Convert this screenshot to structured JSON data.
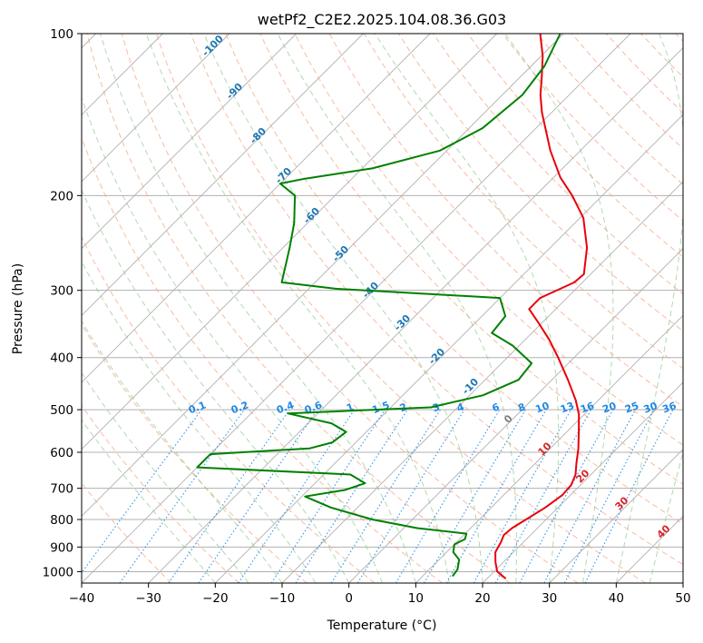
{
  "chart_data": {
    "type": "line",
    "title": "wetPf2_C2E2.2025.104.08.36.G03",
    "xlabel": "Temperature (°C)",
    "ylabel": "Pressure (hPa)",
    "xlim": [
      -40,
      50
    ],
    "ylim": [
      1050,
      100
    ],
    "y_scale": "log",
    "skew": true,
    "grid": true,
    "x_ticks": [
      "-40",
      "-30",
      "-20",
      "-10",
      "0",
      "10",
      "20",
      "30",
      "40",
      "50"
    ],
    "y_ticks": [
      "100",
      "200",
      "300",
      "400",
      "500",
      "600",
      "700",
      "800",
      "900",
      "1000"
    ],
    "colors": {
      "temperature": "#e8000b",
      "dewpoint": "#008000",
      "isotherm_grid": "#b0b0b0",
      "dry_adiabat": "#f4a582",
      "moist_adiabat": "#7fbf7b",
      "mixing_ratio": "#1e88e5",
      "label_blue": "#1f77b4",
      "label_red": "#d62728"
    },
    "series": [
      {
        "name": "",
        "role": "temperature",
        "points": [
          {
            "p": 1030,
            "t": 22.8
          },
          {
            "p": 1000,
            "t": 20.5
          },
          {
            "p": 960,
            "t": 18.8
          },
          {
            "p": 920,
            "t": 17.3
          },
          {
            "p": 880,
            "t": 16.6
          },
          {
            "p": 855,
            "t": 16.0
          },
          {
            "p": 830,
            "t": 16.2
          },
          {
            "p": 800,
            "t": 17.0
          },
          {
            "p": 760,
            "t": 18.1
          },
          {
            "p": 720,
            "t": 18.8
          },
          {
            "p": 690,
            "t": 18.6
          },
          {
            "p": 660,
            "t": 17.7
          },
          {
            "p": 630,
            "t": 16.2
          },
          {
            "p": 590,
            "t": 14.2
          },
          {
            "p": 545,
            "t": 11.5
          },
          {
            "p": 510,
            "t": 9.2
          },
          {
            "p": 480,
            "t": 6.6
          },
          {
            "p": 440,
            "t": 2.4
          },
          {
            "p": 400,
            "t": -2.4
          },
          {
            "p": 370,
            "t": -6.5
          },
          {
            "p": 345,
            "t": -10.5
          },
          {
            "p": 325,
            "t": -14.0
          },
          {
            "p": 310,
            "t": -14.0
          },
          {
            "p": 290,
            "t": -11.2
          },
          {
            "p": 280,
            "t": -11.0
          },
          {
            "p": 250,
            "t": -14.5
          },
          {
            "p": 220,
            "t": -19.5
          },
          {
            "p": 200,
            "t": -24.5
          },
          {
            "p": 185,
            "t": -29.0
          },
          {
            "p": 165,
            "t": -34.5
          },
          {
            "p": 140,
            "t": -41.5
          },
          {
            "p": 130,
            "t": -44.3
          },
          {
            "p": 120,
            "t": -46.9
          },
          {
            "p": 110,
            "t": -49.8
          },
          {
            "p": 100,
            "t": -53.5
          }
        ]
      },
      {
        "name": "",
        "role": "dewpoint",
        "points": [
          {
            "p": 1020,
            "t": 14.5
          },
          {
            "p": 990,
            "t": 14.2
          },
          {
            "p": 950,
            "t": 13.0
          },
          {
            "p": 920,
            "t": 11.0
          },
          {
            "p": 890,
            "t": 10.0
          },
          {
            "p": 870,
            "t": 10.8
          },
          {
            "p": 850,
            "t": 10.2
          },
          {
            "p": 830,
            "t": 2.0
          },
          {
            "p": 800,
            "t": -6.0
          },
          {
            "p": 760,
            "t": -14.0
          },
          {
            "p": 725,
            "t": -19.5
          },
          {
            "p": 705,
            "t": -14.5
          },
          {
            "p": 685,
            "t": -12.5
          },
          {
            "p": 660,
            "t": -16.0
          },
          {
            "p": 640,
            "t": -40.0
          },
          {
            "p": 605,
            "t": -40.0
          },
          {
            "p": 590,
            "t": -26.0
          },
          {
            "p": 575,
            "t": -23.5
          },
          {
            "p": 550,
            "t": -23.0
          },
          {
            "p": 530,
            "t": -26.5
          },
          {
            "p": 508,
            "t": -34.5
          },
          {
            "p": 495,
            "t": -14.0
          },
          {
            "p": 470,
            "t": -8.0
          },
          {
            "p": 440,
            "t": -5.0
          },
          {
            "p": 410,
            "t": -5.5
          },
          {
            "p": 380,
            "t": -11.0
          },
          {
            "p": 360,
            "t": -16.0
          },
          {
            "p": 335,
            "t": -16.5
          },
          {
            "p": 310,
            "t": -20.0
          },
          {
            "p": 298,
            "t": -46.0
          },
          {
            "p": 290,
            "t": -55.0
          },
          {
            "p": 250,
            "t": -59.0
          },
          {
            "p": 225,
            "t": -62.0
          },
          {
            "p": 200,
            "t": -66.0
          },
          {
            "p": 190,
            "t": -70.0
          },
          {
            "p": 186,
            "t": -67.0
          },
          {
            "p": 178,
            "t": -58.5
          },
          {
            "p": 165,
            "t": -51.0
          },
          {
            "p": 150,
            "t": -48.0
          },
          {
            "p": 130,
            "t": -47.0
          },
          {
            "p": 115,
            "t": -48.0
          },
          {
            "p": 100,
            "t": -50.5
          }
        ]
      }
    ],
    "isotherm_labels": [
      "-100",
      "-90",
      "-80",
      "-70",
      "-60",
      "-50",
      "-40",
      "-30",
      "-20",
      "-10",
      "0",
      "10",
      "20",
      "30",
      "40"
    ],
    "mixing_ratio_labels": [
      "0.1",
      "0.2",
      "0.4",
      "0.6",
      "1",
      "1.5",
      "2",
      "3",
      "4",
      "6",
      "8",
      "10",
      "13",
      "16",
      "20",
      "25",
      "30",
      "36"
    ]
  }
}
